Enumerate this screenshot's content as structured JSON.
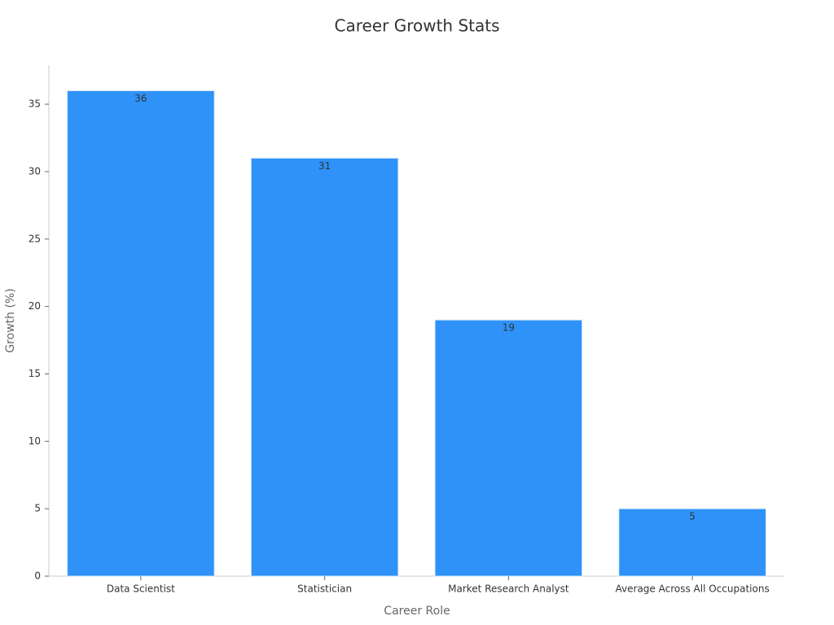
{
  "chart_data": {
    "type": "bar",
    "title": "Career Growth Stats",
    "x_label": "Career Role",
    "y_label": "Growth (%)",
    "categories": [
      "Data Scientist",
      "Statistician",
      "Market Research Analyst",
      "Average Across All Occupations"
    ],
    "values": [
      36,
      31,
      19,
      5
    ],
    "color": "#2f92f8",
    "ylim": [
      0,
      37.9
    ],
    "yticks": [
      0,
      5,
      10,
      15,
      20,
      25,
      30,
      35
    ],
    "grid": false
  }
}
